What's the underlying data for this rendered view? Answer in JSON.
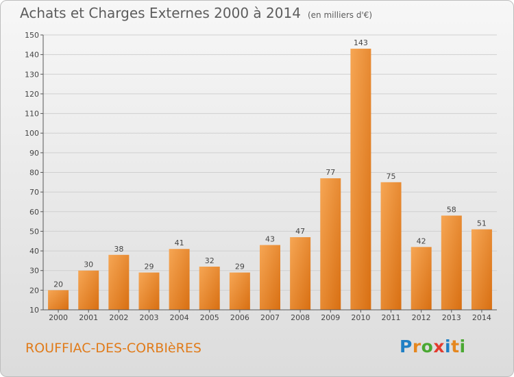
{
  "header": {
    "title": "Achats et Charges Externes 2000 à 2014",
    "subtitle": "(en milliers d'€)"
  },
  "footer": {
    "commune": "ROUFFIAC-DES-CORBIèRES",
    "logo_letters": [
      {
        "ch": "P",
        "color": "#1f7fc4"
      },
      {
        "ch": "r",
        "color": "#e5871f"
      },
      {
        "ch": "o",
        "color": "#4aa832"
      },
      {
        "ch": "x",
        "color": "#e33b2e"
      },
      {
        "ch": "i",
        "color": "#1f7fc4"
      },
      {
        "ch": "t",
        "color": "#e5871f"
      },
      {
        "ch": "i",
        "color": "#4aa832"
      }
    ]
  },
  "colors": {
    "bar_light": "#f6a654",
    "bar_dark": "#d86f12",
    "grid": "#cfcfcf",
    "axis": "#555555"
  },
  "chart_data": {
    "type": "bar",
    "categories": [
      "2000",
      "2001",
      "2002",
      "2003",
      "2004",
      "2005",
      "2006",
      "2007",
      "2008",
      "2009",
      "2010",
      "2011",
      "2012",
      "2013",
      "2014"
    ],
    "values": [
      20,
      30,
      38,
      29,
      41,
      32,
      29,
      43,
      47,
      77,
      143,
      75,
      42,
      58,
      51
    ],
    "ylim": [
      10,
      150
    ],
    "yticks": [
      10,
      20,
      30,
      40,
      50,
      60,
      70,
      80,
      90,
      100,
      110,
      120,
      130,
      140,
      150
    ],
    "grid": true
  }
}
